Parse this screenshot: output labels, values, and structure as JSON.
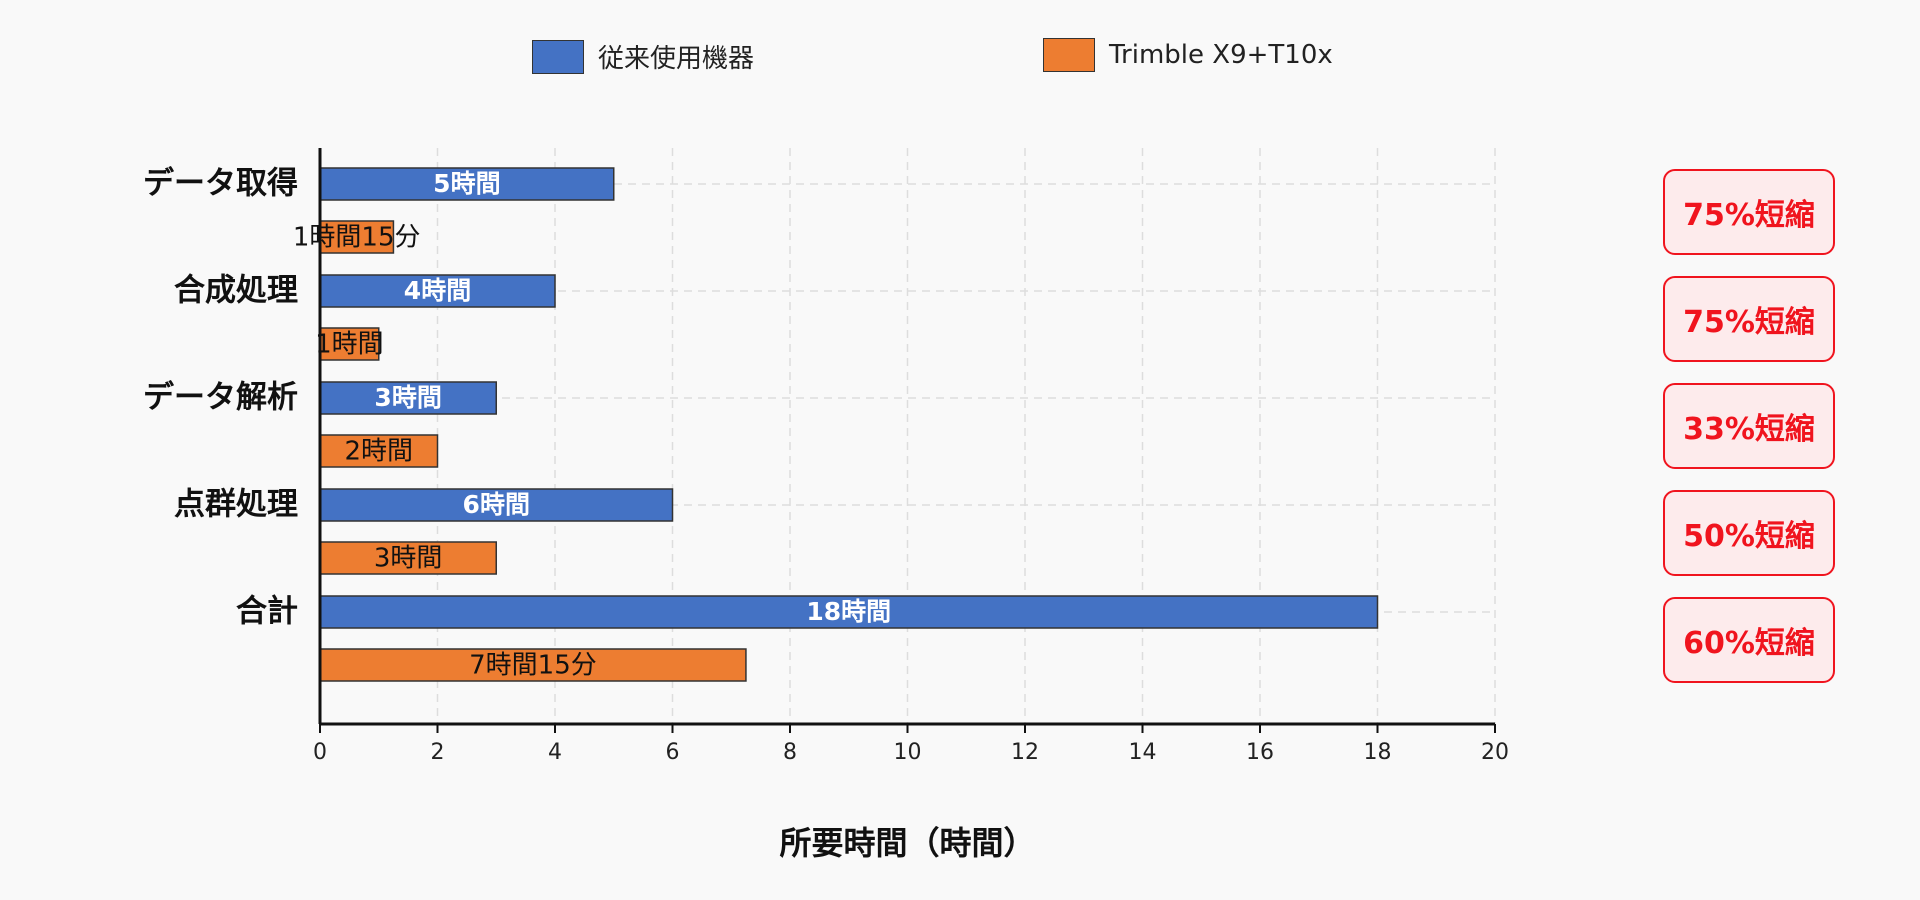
{
  "chart_data": {
    "type": "bar",
    "orientation": "horizontal",
    "categories": [
      "データ取得",
      "合成処理",
      "データ解析",
      "点群処理",
      "合計"
    ],
    "series": [
      {
        "name": "従来使用機器",
        "color": "#4472c4",
        "values": [
          5,
          4,
          3,
          6,
          18
        ],
        "labels": [
          "5時間",
          "4時間",
          "3時間",
          "6時間",
          "18時間"
        ]
      },
      {
        "name": "Trimble X9+T10x",
        "color": "#ed7d31",
        "values": [
          1.25,
          1,
          2,
          3,
          7.25
        ],
        "labels": [
          "1時間15分",
          "1時間",
          "2時間",
          "3時間",
          "7時間15分"
        ]
      }
    ],
    "reductions": [
      "75%短縮",
      "75%短縮",
      "33%短縮",
      "50%短縮",
      "60%短縮"
    ],
    "xlabel": "所要時間（時間）",
    "xlim": [
      0,
      20
    ],
    "xticks": [
      "0",
      "2",
      "4",
      "6",
      "8",
      "10",
      "12",
      "14",
      "16",
      "18",
      "20"
    ],
    "grid": true,
    "legend_position": "top"
  }
}
